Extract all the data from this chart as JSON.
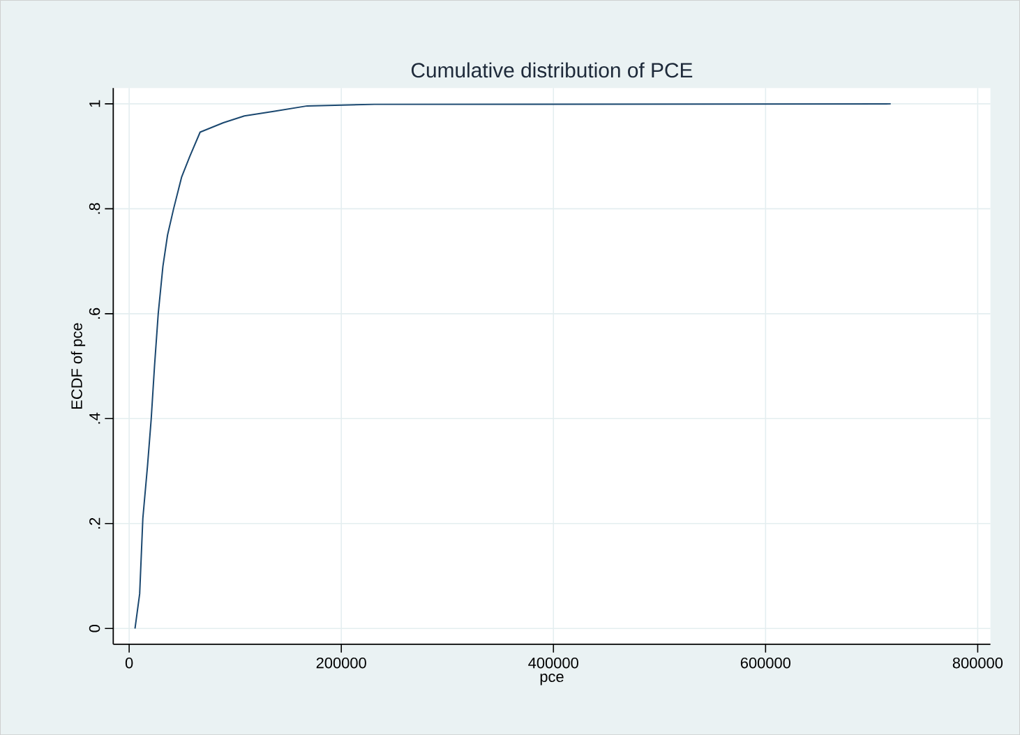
{
  "chart_data": {
    "type": "line",
    "title": "Cumulative distribution of PCE",
    "xlabel": "pce",
    "ylabel": "ECDF of pce",
    "x": [
      5500,
      9900,
      12900,
      17300,
      20800,
      23900,
      27400,
      31800,
      36200,
      41900,
      49400,
      57200,
      66900,
      88800,
      108600,
      137100,
      167800,
      231400,
      718000
    ],
    "series": [
      {
        "color": "#1a476f",
        "values": [
          0,
          0.066,
          0.21,
          0.31,
          0.4,
          0.5,
          0.6,
          0.69,
          0.75,
          0.8,
          0.86,
          0.9,
          0.946,
          0.964,
          0.977,
          0.986,
          0.996,
          0.999,
          1
        ]
      }
    ],
    "xlim": [
      -15000,
      812000
    ],
    "ylim": [
      -0.03,
      1.03
    ],
    "xticks": [
      0,
      200000,
      400000,
      600000,
      800000
    ],
    "yticks": [
      0,
      {
        "value": 0.2,
        "label": ".2"
      },
      {
        "value": 0.4,
        "label": ".4"
      },
      {
        "value": 0.6,
        "label": ".6"
      },
      {
        "value": 0.8,
        "label": ".8"
      },
      1
    ],
    "grid": true,
    "marker": "none",
    "line_style": "solid"
  }
}
